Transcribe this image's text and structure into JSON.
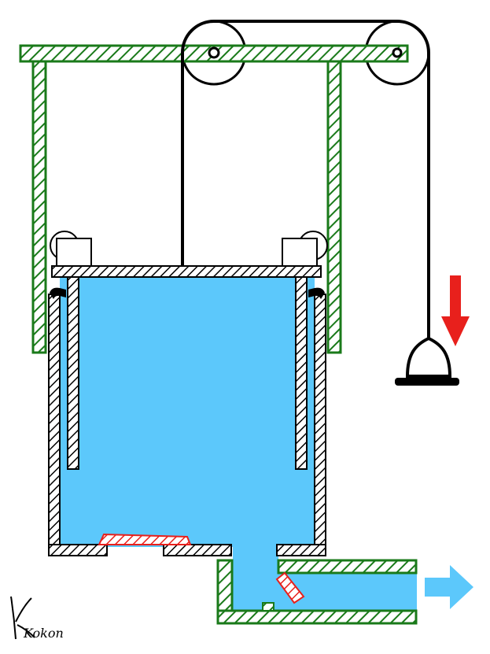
{
  "signature": "Kokon",
  "colors": {
    "frame": "#1a7a1a",
    "water": "#5cc8fb",
    "hatch_wall": "#000000",
    "valve": "#e8201c",
    "arrow_down": "#e8201c",
    "arrow_out": "#5cc8fb",
    "rope": "#000000"
  },
  "icons": {
    "down_arrow": "arrow-down-icon",
    "out_arrow": "arrow-right-icon",
    "weight": "counterweight-icon",
    "pulley": "pulley-icon"
  }
}
